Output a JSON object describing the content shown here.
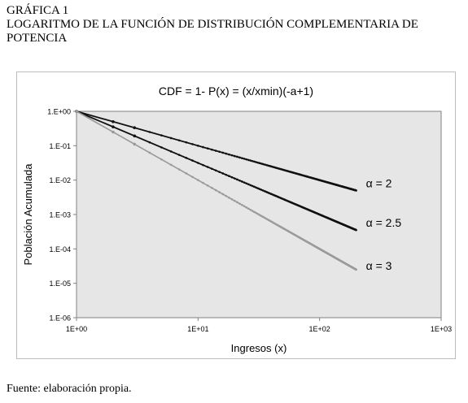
{
  "figure": {
    "label": "GRÁFICA 1",
    "caption": "LOGARITMO DE LA FUNCIÓN DE DISTRIBUCIÓN COMPLEMENTARIA DE POTENCIA",
    "source": "Fuente: elaboración propia."
  },
  "chart_data": {
    "type": "line",
    "title": "CDF = 1- P(x) = (x/xmin)(-a+1)",
    "xlabel": "Ingresos (x)",
    "ylabel": "Población Acumulada",
    "xscale": "log",
    "yscale": "log",
    "xlim": [
      1,
      1000
    ],
    "ylim": [
      1e-06,
      1
    ],
    "xticks": [
      "1E+00",
      "1E+01",
      "1E+02",
      "1E+03"
    ],
    "yticks": [
      "1.E+00",
      "1.E-01",
      "1.E-02",
      "1.E-03",
      "1.E-04",
      "1.E-05",
      "1.E-06"
    ],
    "x_range": [
      1,
      200
    ],
    "grid": false,
    "plot_background": "#e6e6e6",
    "series": [
      {
        "name": "α = 2",
        "alpha": 2,
        "x": [
          1,
          2,
          5,
          10,
          20,
          50,
          100,
          200
        ],
        "y": [
          1,
          0.5,
          0.2,
          0.1,
          0.05,
          0.02,
          0.01,
          0.005
        ],
        "color": "#111111"
      },
      {
        "name": "α = 2.5",
        "alpha": 2.5,
        "x": [
          1,
          2,
          5,
          10,
          20,
          50,
          100,
          200
        ],
        "y": [
          1,
          0.354,
          0.0894,
          0.0316,
          0.0112,
          0.00283,
          0.001,
          0.000354
        ],
        "color": "#111111"
      },
      {
        "name": "α = 3",
        "alpha": 3,
        "x": [
          1,
          2,
          5,
          10,
          20,
          50,
          100,
          200
        ],
        "y": [
          1,
          0.25,
          0.04,
          0.01,
          0.0025,
          0.0004,
          0.0001,
          2.5e-05
        ],
        "color": "#9a9a9a"
      }
    ]
  }
}
